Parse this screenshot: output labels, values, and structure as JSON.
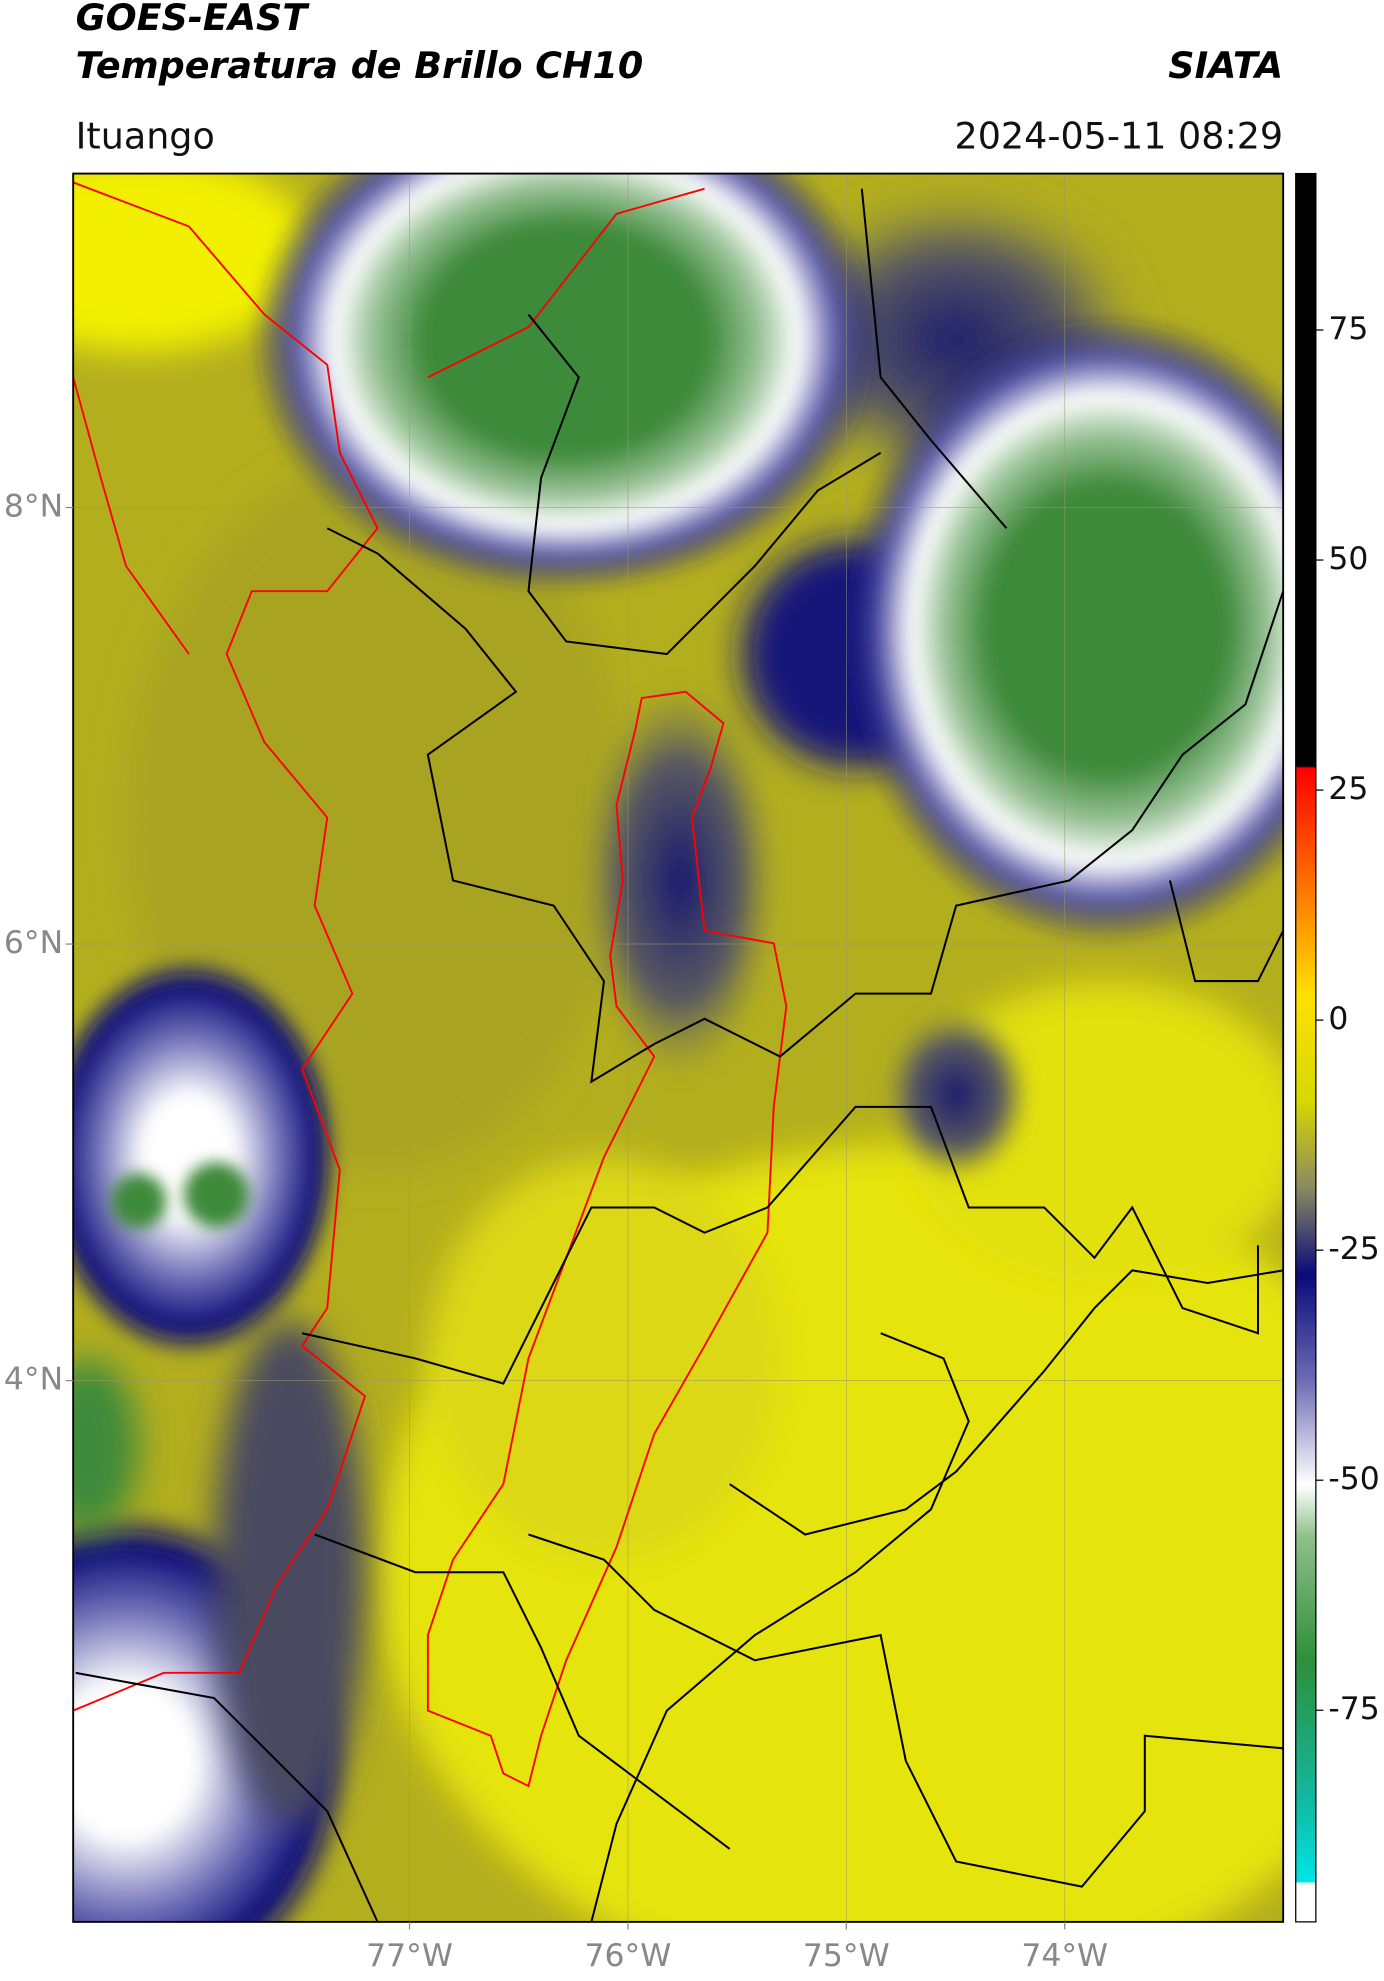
{
  "header": {
    "title": "GOES-EAST",
    "subtitle": "Temperatura de Brillo CH10",
    "source": "SIATA",
    "region": "Ituango",
    "datetime": "2024-05-11 08:29"
  },
  "map": {
    "xlim": [
      -78.54,
      -73.0
    ],
    "ylim": [
      1.52,
      9.53
    ],
    "xticks": [
      {
        "value": -77,
        "label": "77°W"
      },
      {
        "value": -76,
        "label": "76°W"
      },
      {
        "value": -75,
        "label": "75°W"
      },
      {
        "value": -74,
        "label": "74°W"
      }
    ],
    "yticks": [
      {
        "value": 8,
        "label": "8°N"
      },
      {
        "value": 6,
        "label": "6°N"
      },
      {
        "value": 4,
        "label": "4°N"
      }
    ]
  },
  "colorbar": {
    "lim": [
      -98,
      92
    ],
    "ticks": [
      75,
      50,
      25,
      0,
      -25,
      -50,
      -75
    ]
  }
}
